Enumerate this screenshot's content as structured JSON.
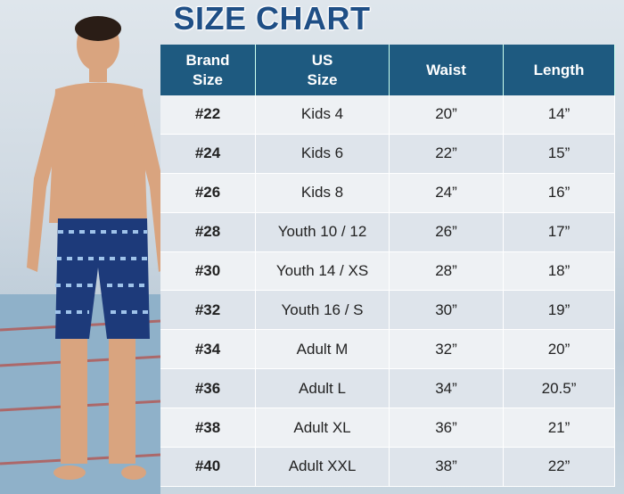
{
  "title": "SIZE CHART",
  "table": {
    "headers": [
      [
        "Brand",
        "Size"
      ],
      [
        "US",
        "Size"
      ],
      [
        "Waist"
      ],
      [
        "Length"
      ]
    ],
    "rows": [
      [
        "#22",
        "Kids 4",
        "20”",
        "14”"
      ],
      [
        "#24",
        "Kids 6",
        "22”",
        "15”"
      ],
      [
        "#26",
        "Kids 8",
        "24”",
        "16”"
      ],
      [
        "#28",
        "Youth 10 / 12",
        "26”",
        "17”"
      ],
      [
        "#30",
        "Youth 14 / XS",
        "28”",
        "18”"
      ],
      [
        "#32",
        "Youth 16 / S",
        "30”",
        "19”"
      ],
      [
        "#34",
        "Adult M",
        "32”",
        "20”"
      ],
      [
        "#36",
        "Adult L",
        "34”",
        "20.5”"
      ],
      [
        "#38",
        "Adult XL",
        "36”",
        "21”"
      ],
      [
        "#40",
        "Adult XXL",
        "38”",
        "22”"
      ]
    ]
  }
}
